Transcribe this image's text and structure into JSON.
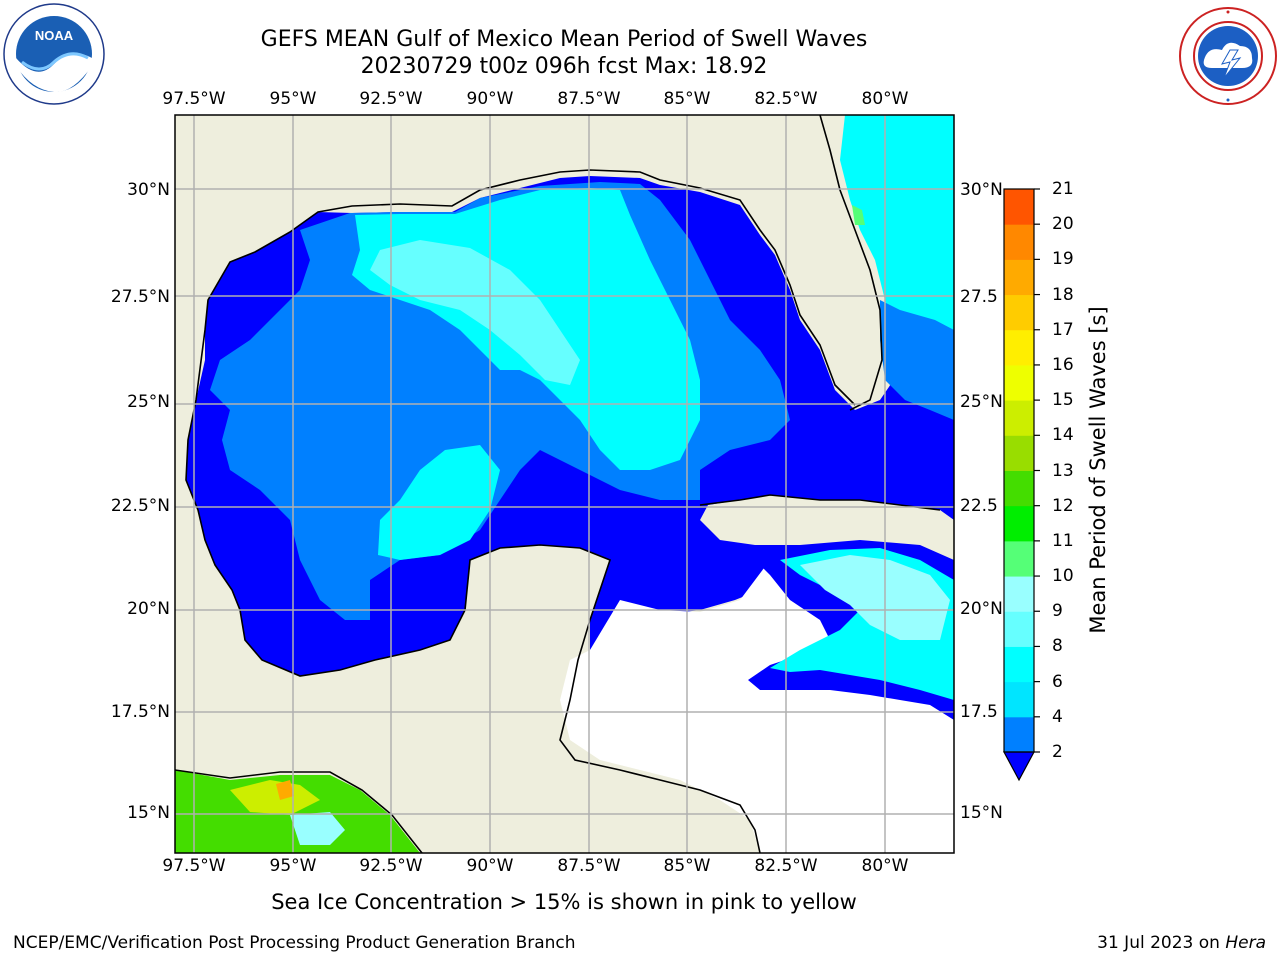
{
  "header": {
    "title_line1": "GEFS MEAN Gulf of Mexico Mean Period of Swell Waves",
    "title_line2": "20230729 t00z 096h fcst   Max: 18.92"
  },
  "logos": {
    "left": "noaa-logo",
    "right": "nws-logo"
  },
  "map": {
    "lon_labels": [
      "97.5°W",
      "95°W",
      "92.5°W",
      "90°W",
      "87.5°W",
      "85°W",
      "82.5°W",
      "80°W"
    ],
    "lat_labels_left": [
      "30°N",
      "27.5°N",
      "25°N",
      "22.5°N",
      "20°N",
      "17.5°N",
      "15°N"
    ],
    "lat_labels_right": [
      "30°N",
      "27.5",
      "25°N",
      "22.5",
      "20°N",
      "17.5",
      "15°N"
    ],
    "colors": {
      "land": "#eeeedd",
      "ocean_low": "#0000ff",
      "ocean_mid": "#0080ff",
      "ocean_high": "#00ffff"
    }
  },
  "colorbar": {
    "title": "Mean Period of Swell Waves [s]",
    "levels": [
      "2",
      "4",
      "6",
      "8",
      "9",
      "10",
      "11",
      "12",
      "13",
      "14",
      "15",
      "16",
      "17",
      "18",
      "19",
      "20",
      "21"
    ],
    "colors": [
      "#0080ff",
      "#00e5ff",
      "#00ffff",
      "#66ffff",
      "#99ffff",
      "#55ff77",
      "#00ee00",
      "#44dd00",
      "#99dd00",
      "#ccee00",
      "#eeff00",
      "#ffee00",
      "#ffcc00",
      "#ffaa00",
      "#ff8800",
      "#ff5500",
      "#ff2200",
      "#ff0000"
    ],
    "under_color": "#0000ff"
  },
  "note": "Sea Ice Concentration > 15% is shown in pink to yellow",
  "footer": {
    "left": "NCEP/EMC/Verification Post Processing Product Generation Branch",
    "right_date": "31 Jul 2023 on ",
    "right_host": "Hera"
  }
}
